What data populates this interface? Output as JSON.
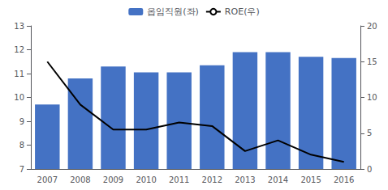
{
  "chart_data": {
    "type": "bar",
    "categories": [
      "2007",
      "2008",
      "2009",
      "2010",
      "2011",
      "2012",
      "2013",
      "2014",
      "2015",
      "2016"
    ],
    "series": [
      {
        "name": "옵임직원(좌)",
        "type": "bar",
        "color": "#4472C4",
        "values": [
          9.7,
          10.8,
          11.3,
          11.05,
          11.05,
          11.35,
          11.9,
          11.9,
          11.7,
          11.65
        ]
      },
      {
        "name": "ROE(우)",
        "type": "line",
        "color": "#000000",
        "axis": "y2",
        "values": [
          15.0,
          9.0,
          5.5,
          5.5,
          6.5,
          6.0,
          2.5,
          4.0,
          2.0,
          1.0
        ]
      }
    ],
    "ylim": [
      7,
      13
    ],
    "yticks": [
      7,
      8,
      9,
      10,
      11,
      12,
      13
    ],
    "y2lim": [
      0,
      20
    ],
    "y2ticks": [
      0,
      5,
      10,
      15,
      20
    ],
    "grid": false,
    "legend": "top"
  }
}
